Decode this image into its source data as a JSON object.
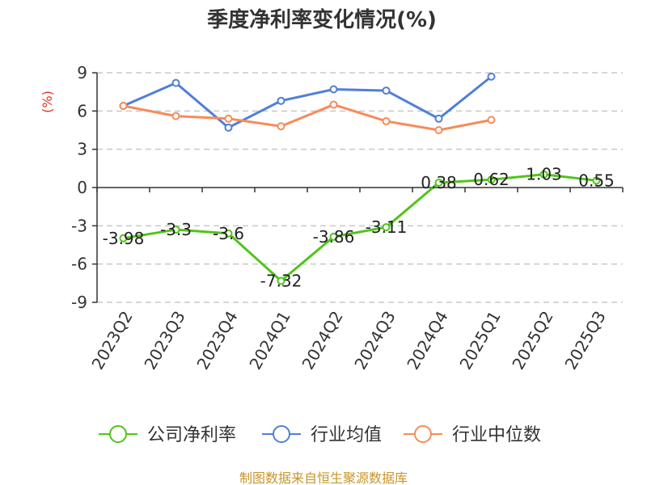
{
  "chart_data": {
    "type": "line",
    "title": "季度净利率变化情况(%)",
    "ylabel": "(%)",
    "ylim": [
      -9,
      9
    ],
    "yticks": [
      9,
      6,
      3,
      0,
      -3,
      -6,
      -9
    ],
    "grid": true,
    "legend_position": "bottom",
    "categories": [
      "2023Q2",
      "2023Q3",
      "2023Q4",
      "2024Q1",
      "2024Q2",
      "2024Q3",
      "2024Q4",
      "2025Q1",
      "2025Q2",
      "2025Q3"
    ],
    "series": [
      {
        "name": "公司净利率",
        "color": "#52c41a",
        "labeled": true,
        "values": [
          -3.98,
          -3.3,
          -3.6,
          -7.32,
          -3.86,
          -3.11,
          0.38,
          0.62,
          1.03,
          0.55
        ]
      },
      {
        "name": "行业均值",
        "color": "#4f7fd9",
        "labeled": false,
        "values": [
          6.4,
          8.2,
          4.7,
          6.8,
          7.7,
          7.6,
          5.4,
          8.7,
          null,
          null
        ]
      },
      {
        "name": "行业中位数",
        "color": "#f58c5a",
        "labeled": false,
        "values": [
          6.4,
          5.6,
          5.4,
          4.8,
          6.5,
          5.2,
          4.5,
          5.3,
          null,
          null
        ]
      }
    ]
  },
  "source_text": "制图数据来自恒生聚源数据库",
  "colors": {
    "axis": "#333333",
    "grid": "#c8c8c8",
    "unit": "#e0311f",
    "source": "#c8952a"
  }
}
